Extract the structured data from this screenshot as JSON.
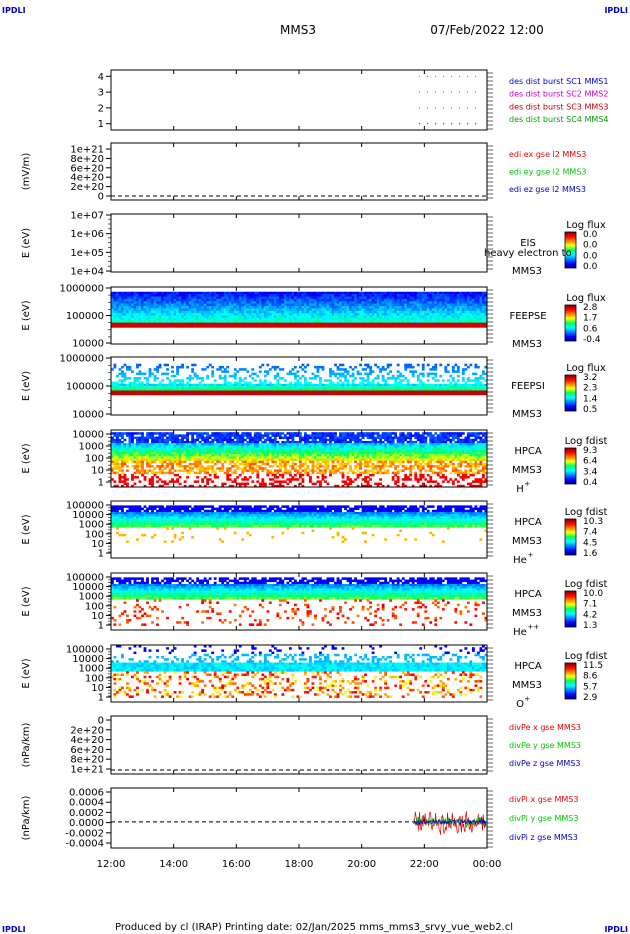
{
  "header": {
    "corner_left": "IPDLI",
    "corner_right": "IPDLI",
    "spacecraft": "MMS3",
    "datetime": "07/Feb/2022 12:00"
  },
  "footer": {
    "corner_left": "IPDLI",
    "corner_right": "IPDLI",
    "text": "Produced by cl (IRAP)   Printing date: 02/Jan/2025   mms_mms3_srvy_vue_web2.cl"
  },
  "colors": {
    "red": "#e00000",
    "magenta": "#e000e0",
    "green": "#00c000",
    "blue": "#0000c0",
    "mms3_red": "#c00000"
  },
  "chart_data": [
    {
      "type": "line",
      "yticks": [
        "1",
        "2",
        "3",
        "4"
      ],
      "ylim": [
        0.6,
        4.4
      ],
      "segment": [
        "21:50",
        "00:00"
      ],
      "series": [
        {
          "name": "des dist burst SC1 MMS1",
          "value": 4,
          "color": "#00a000"
        },
        {
          "name": "des dist burst SC2 MMS2",
          "value": 3,
          "color": "#e00000"
        },
        {
          "name": "des dist burst SC3 MMS3",
          "value": 2,
          "color": "#c000c0"
        },
        {
          "name": "des dist burst SC4 MMS4",
          "value": 1,
          "color": "#0000c0"
        }
      ],
      "legend_colors": [
        "#0000c0",
        "#c000c0",
        "#c00000",
        "#00a000"
      ]
    },
    {
      "type": "line",
      "ylabel": "(mV/m)",
      "yticks": [
        "0",
        "2e+20",
        "4e+20",
        "6e+20",
        "8e+20",
        "1e+21"
      ],
      "series": [
        {
          "name": "edi ex gse l2 MMS3",
          "color": "#e00000"
        },
        {
          "name": "edi ey gse l2 MMS3",
          "color": "#00c000"
        },
        {
          "name": "edi ez gse l2 MMS3",
          "color": "#0000c0"
        }
      ]
    },
    {
      "type": "heatmap",
      "ylabel": "E (eV)",
      "yticks": [
        "1e+04",
        "1e+05",
        "1e+06",
        "1e+07"
      ],
      "instrument": "EIS",
      "overlap_label": "heavy electron to",
      "spacecraft": "MMS3",
      "colorbar_title": "Log flux",
      "colorbar_ticks": [
        "0.0",
        "0.0",
        "0.0",
        "0.0"
      ]
    },
    {
      "type": "heatmap",
      "ylabel": "E (eV)",
      "yticks": [
        "1000000",
        "100000",
        "10000"
      ],
      "instrument": "FEEPSE",
      "spacecraft": "MMS3",
      "colorbar_title": "Log flux",
      "colorbar_ticks": [
        "2.8",
        "1.7",
        "0.6",
        "-0.4"
      ]
    },
    {
      "type": "heatmap",
      "ylabel": "E (eV)",
      "yticks": [
        "1000000",
        "100000",
        "10000"
      ],
      "instrument": "FEEPSI",
      "spacecraft": "MMS3",
      "colorbar_title": "Log flux",
      "colorbar_ticks": [
        "3.2",
        "2.3",
        "1.4",
        "0.5"
      ]
    },
    {
      "type": "heatmap",
      "ylabel": "E (eV)",
      "yticks": [
        "10000",
        "1000",
        "100",
        "10",
        "1"
      ],
      "instrument": "HPCA",
      "spacecraft": "MMS3",
      "species": "H",
      "charge": "+",
      "colorbar_title": "Log fdist",
      "colorbar_ticks": [
        "9.3",
        "6.4",
        "3.4",
        "0.4"
      ]
    },
    {
      "type": "heatmap",
      "ylabel": "E (eV)",
      "yticks": [
        "100000",
        "10000",
        "1000",
        "100",
        "10",
        "1"
      ],
      "instrument": "HPCA",
      "spacecraft": "MMS3",
      "species": "He",
      "charge": "+",
      "colorbar_title": "Log fdist",
      "colorbar_ticks": [
        "10.3",
        "7.4",
        "4.5",
        "1.6"
      ]
    },
    {
      "type": "heatmap",
      "ylabel": "E (eV)",
      "yticks": [
        "100000",
        "10000",
        "1000",
        "100",
        "10",
        "1"
      ],
      "instrument": "HPCA",
      "spacecraft": "MMS3",
      "species": "He",
      "charge": "++",
      "colorbar_title": "Log fdist",
      "colorbar_ticks": [
        "10.0",
        "7.1",
        "4.2",
        "1.3"
      ]
    },
    {
      "type": "heatmap",
      "ylabel": "E (eV)",
      "yticks": [
        "100000",
        "10000",
        "1000",
        "100",
        "10",
        "1"
      ],
      "instrument": "HPCA",
      "spacecraft": "MMS3",
      "species": "O",
      "charge": "+",
      "colorbar_title": "Log fdist",
      "colorbar_ticks": [
        "11.5",
        "8.6",
        "5.7",
        "2.9"
      ]
    },
    {
      "type": "line",
      "ylabel": "(nPa/km)",
      "yticks": [
        "0",
        "2e+20",
        "4e+20",
        "6e+20",
        "8e+20",
        "1e+21"
      ],
      "series": [
        {
          "name": "divPe x gse MMS3",
          "color": "#e00000"
        },
        {
          "name": "divPe y gse MMS3",
          "color": "#00c000"
        },
        {
          "name": "divPe z gse MMS3",
          "color": "#0000c0"
        }
      ]
    },
    {
      "type": "line",
      "ylabel": "(nPa/km)",
      "yticks": [
        "0.0006",
        "0.0004",
        "0.0002",
        "0.0000",
        "-0.0002",
        "-0.0004"
      ],
      "ylim": [
        -0.0005,
        0.00065
      ],
      "data_start": "21:40",
      "series": [
        {
          "name": "divPi x gse MMS3",
          "color": "#e00000"
        },
        {
          "name": "divPi y gse MMS3",
          "color": "#00c000"
        },
        {
          "name": "divPi z gse MMS3",
          "color": "#0000c0"
        }
      ]
    }
  ],
  "x_axis": {
    "ticks": [
      "12:00",
      "14:00",
      "16:00",
      "18:00",
      "20:00",
      "22:00",
      "00:00"
    ]
  }
}
